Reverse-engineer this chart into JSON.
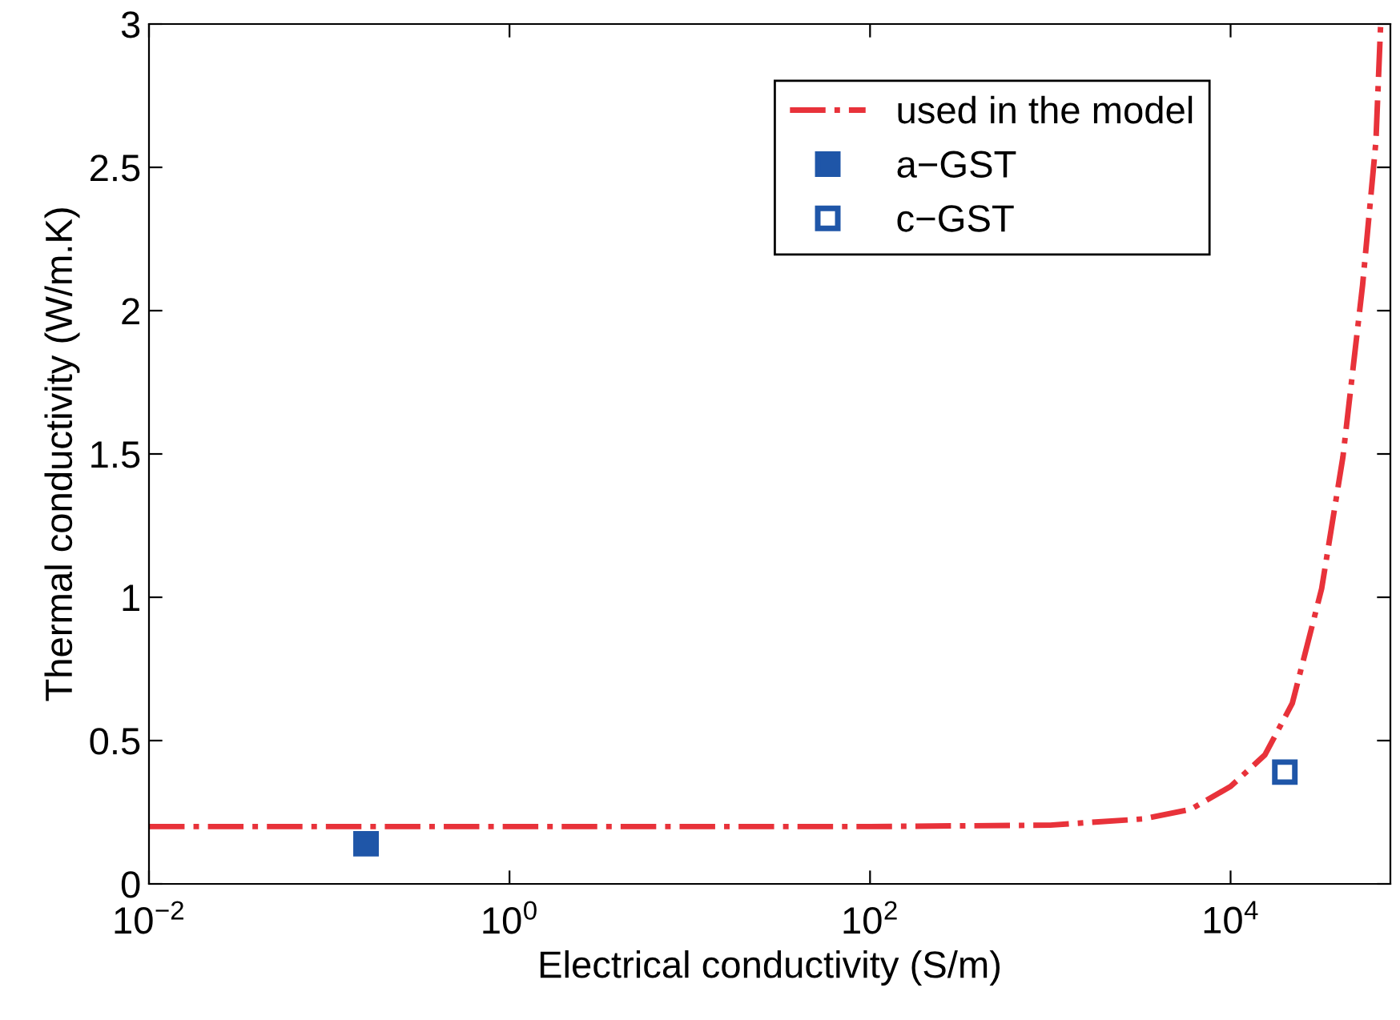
{
  "chart_data": {
    "type": "line",
    "xlabel": "Electrical conductivity (S/m)",
    "ylabel": "Thermal conductivity (W/m.K)",
    "log": "x",
    "xlim": [
      0.01,
      77000
    ],
    "ylim": [
      0,
      3
    ],
    "xticks": [
      {
        "value": 0.01,
        "label": "10$^{−2}$"
      },
      {
        "value": 1,
        "label": "10$^{0}$"
      },
      {
        "value": 100,
        "label": "10$^{2}$"
      },
      {
        "value": 10000,
        "label": "10$^{4}$"
      }
    ],
    "yticks": [
      0,
      0.5,
      1,
      1.5,
      2,
      2.5,
      3
    ],
    "grid": false,
    "legend": "top right",
    "series": [
      {
        "name": "used in the model",
        "color": "#e8323a",
        "line_style": "dashdot",
        "marker": "none",
        "x": [
          0.01,
          1,
          100,
          1000,
          3300,
          6000,
          10000,
          15500,
          22000,
          32000,
          42000,
          54000,
          64000,
          68000
        ],
        "values": [
          0.2,
          0.2,
          0.2,
          0.205,
          0.227,
          0.26,
          0.34,
          0.45,
          0.63,
          1.03,
          1.49,
          2.09,
          2.59,
          3.0
        ]
      },
      {
        "name": "a−GST",
        "type": "scatter",
        "color": "#1f56a8",
        "marker": "square",
        "x": [
          0.16
        ],
        "values": [
          0.14
        ]
      },
      {
        "name": "c−GST",
        "type": "scatter",
        "color": "#1f56a8",
        "marker": "square-open",
        "x": [
          20000
        ],
        "values": [
          0.39
        ]
      }
    ]
  }
}
